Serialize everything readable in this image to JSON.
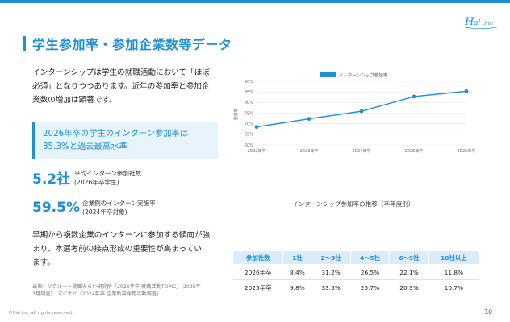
{
  "brand": {
    "logo_text": "Hal.inc",
    "accent": "#1f8fd6"
  },
  "header": {
    "title": "学生参加率・参加企業数等データ"
  },
  "intro_lines": [
    "インターンシップは学生の就職活動において「ほぼ",
    "必須」となりつつあります。近年の参加率と参加企",
    "業数の増加は顕著です。"
  ],
  "callout": {
    "lines": [
      "2026年卒の学生のインターン参加率は",
      "85.3%と過去最高水準"
    ]
  },
  "stats": [
    {
      "value": "5.2社",
      "lines": [
        "平均インターン参加社数",
        "(2026年卒学生)"
      ]
    },
    {
      "value": "59.5%",
      "lines": [
        "企業側のインターン実施率",
        "(2024年卒対象)"
      ]
    }
  ],
  "body2_lines": [
    "早期から複数企業のインターンに参加する傾向が強",
    "まり、本選考前の接点形成の重要性が高まってい",
    "ます。"
  ],
  "source_lines": [
    "出典：リクルート就職みらい研究所「2026年卒 就職活動TOPIC」(2025年",
    "3月調査)、マイナビ「2024年卒 企業新卒採用活動調査」"
  ],
  "chart_data": {
    "type": "line",
    "title": "",
    "caption": "インターンシップ参加率の推移（卒年度別）",
    "legend": "インターンシップ参加率",
    "legend_position": "top",
    "ylabel": "参加率",
    "xlabel": "",
    "ylim": [
      60,
      90
    ],
    "yticks": [
      "90%",
      "85%",
      "80%",
      "75%",
      "70%",
      "65%",
      "60%"
    ],
    "grid": true,
    "line_color": "#1f8fd6",
    "x": [
      "2022年卒",
      "2023年卒",
      "2024年卒",
      "2025年卒",
      "2026年卒"
    ],
    "series": [
      {
        "name": "インターンシップ参加率",
        "values": [
          68.5,
          72.3,
          75.9,
          82.8,
          85.3
        ]
      }
    ]
  },
  "table": {
    "headers": [
      "参加社数",
      "1社",
      "2〜3社",
      "4〜5社",
      "6〜9社",
      "10社以上"
    ],
    "rows": [
      [
        "2026年卒",
        "8.4%",
        "31.2%",
        "26.5%",
        "22.1%",
        "11.8%"
      ],
      [
        "2025年卒",
        "9.8%",
        "33.5%",
        "25.7%",
        "20.3%",
        "10.7%"
      ]
    ]
  },
  "footer": {
    "copyright": "©Hal inc. all rights reserved.",
    "page": "10"
  }
}
